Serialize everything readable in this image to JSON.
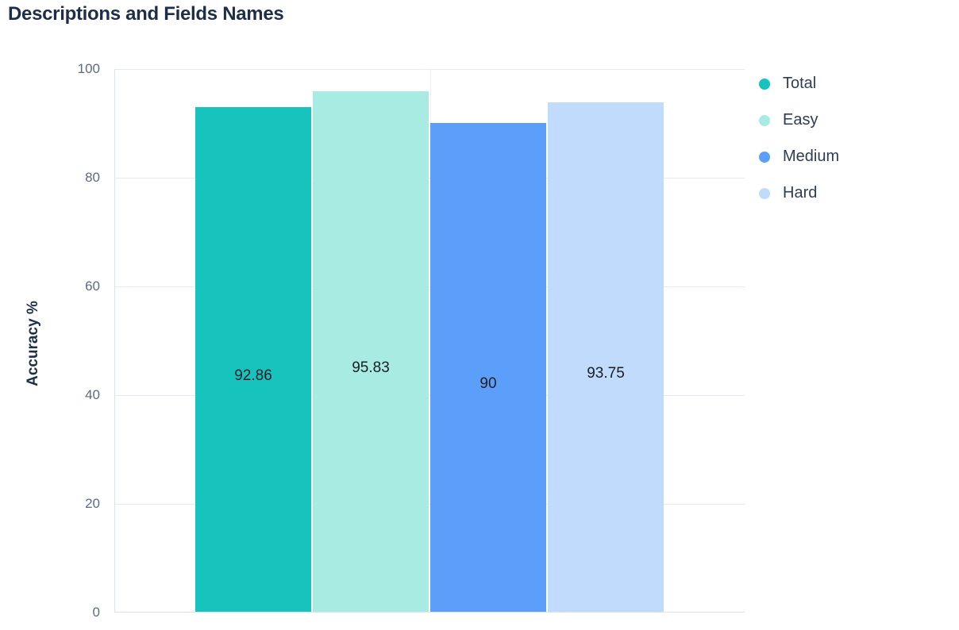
{
  "page": {
    "title": "Descriptions and Fields Names"
  },
  "chart_data": {
    "type": "bar",
    "title": "Descriptions and Fields Names",
    "categories": [
      ""
    ],
    "series": [
      {
        "name": "Total",
        "values": [
          92.86
        ],
        "label": "92.86",
        "color": "#17c3bd"
      },
      {
        "name": "Easy",
        "values": [
          95.83
        ],
        "label": "95.83",
        "color": "#a8ebe3"
      },
      {
        "name": "Medium",
        "values": [
          90
        ],
        "label": "90",
        "color": "#5c9ffa"
      },
      {
        "name": "Hard",
        "values": [
          93.75
        ],
        "label": "93.75",
        "color": "#c0dbfc"
      }
    ],
    "xlabel": "",
    "ylabel": "Accuracy %",
    "ylim": [
      0,
      100
    ],
    "yticks": [
      0,
      20,
      40,
      60,
      80,
      100
    ],
    "grid": true,
    "data_labels": true,
    "legend_position": "right",
    "colors": {
      "grid_line": "#e6eaf3",
      "axis_line": "#dce1ec",
      "tick_text": "#5d6b82",
      "title_text": "#1f2e47",
      "legend_text": "#2e3d52",
      "data_label_text": "#191f24"
    }
  }
}
